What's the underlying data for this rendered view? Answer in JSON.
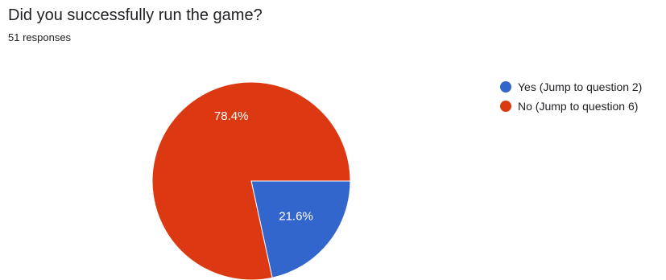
{
  "question": {
    "title": "Did you successfully run the game?",
    "responses": "51 responses"
  },
  "chart_data": {
    "type": "pie",
    "total_responses": 51,
    "slices": [
      {
        "name": "Yes (Jump to question 2)",
        "value": 21.6,
        "label": "21.6%",
        "color": "#3366cc"
      },
      {
        "name": "No (Jump to question 6)",
        "value": 78.4,
        "label": "78.4%",
        "color": "#dc3912"
      }
    ],
    "start": "3 o'clock, clockwise",
    "legend_position": "right"
  }
}
